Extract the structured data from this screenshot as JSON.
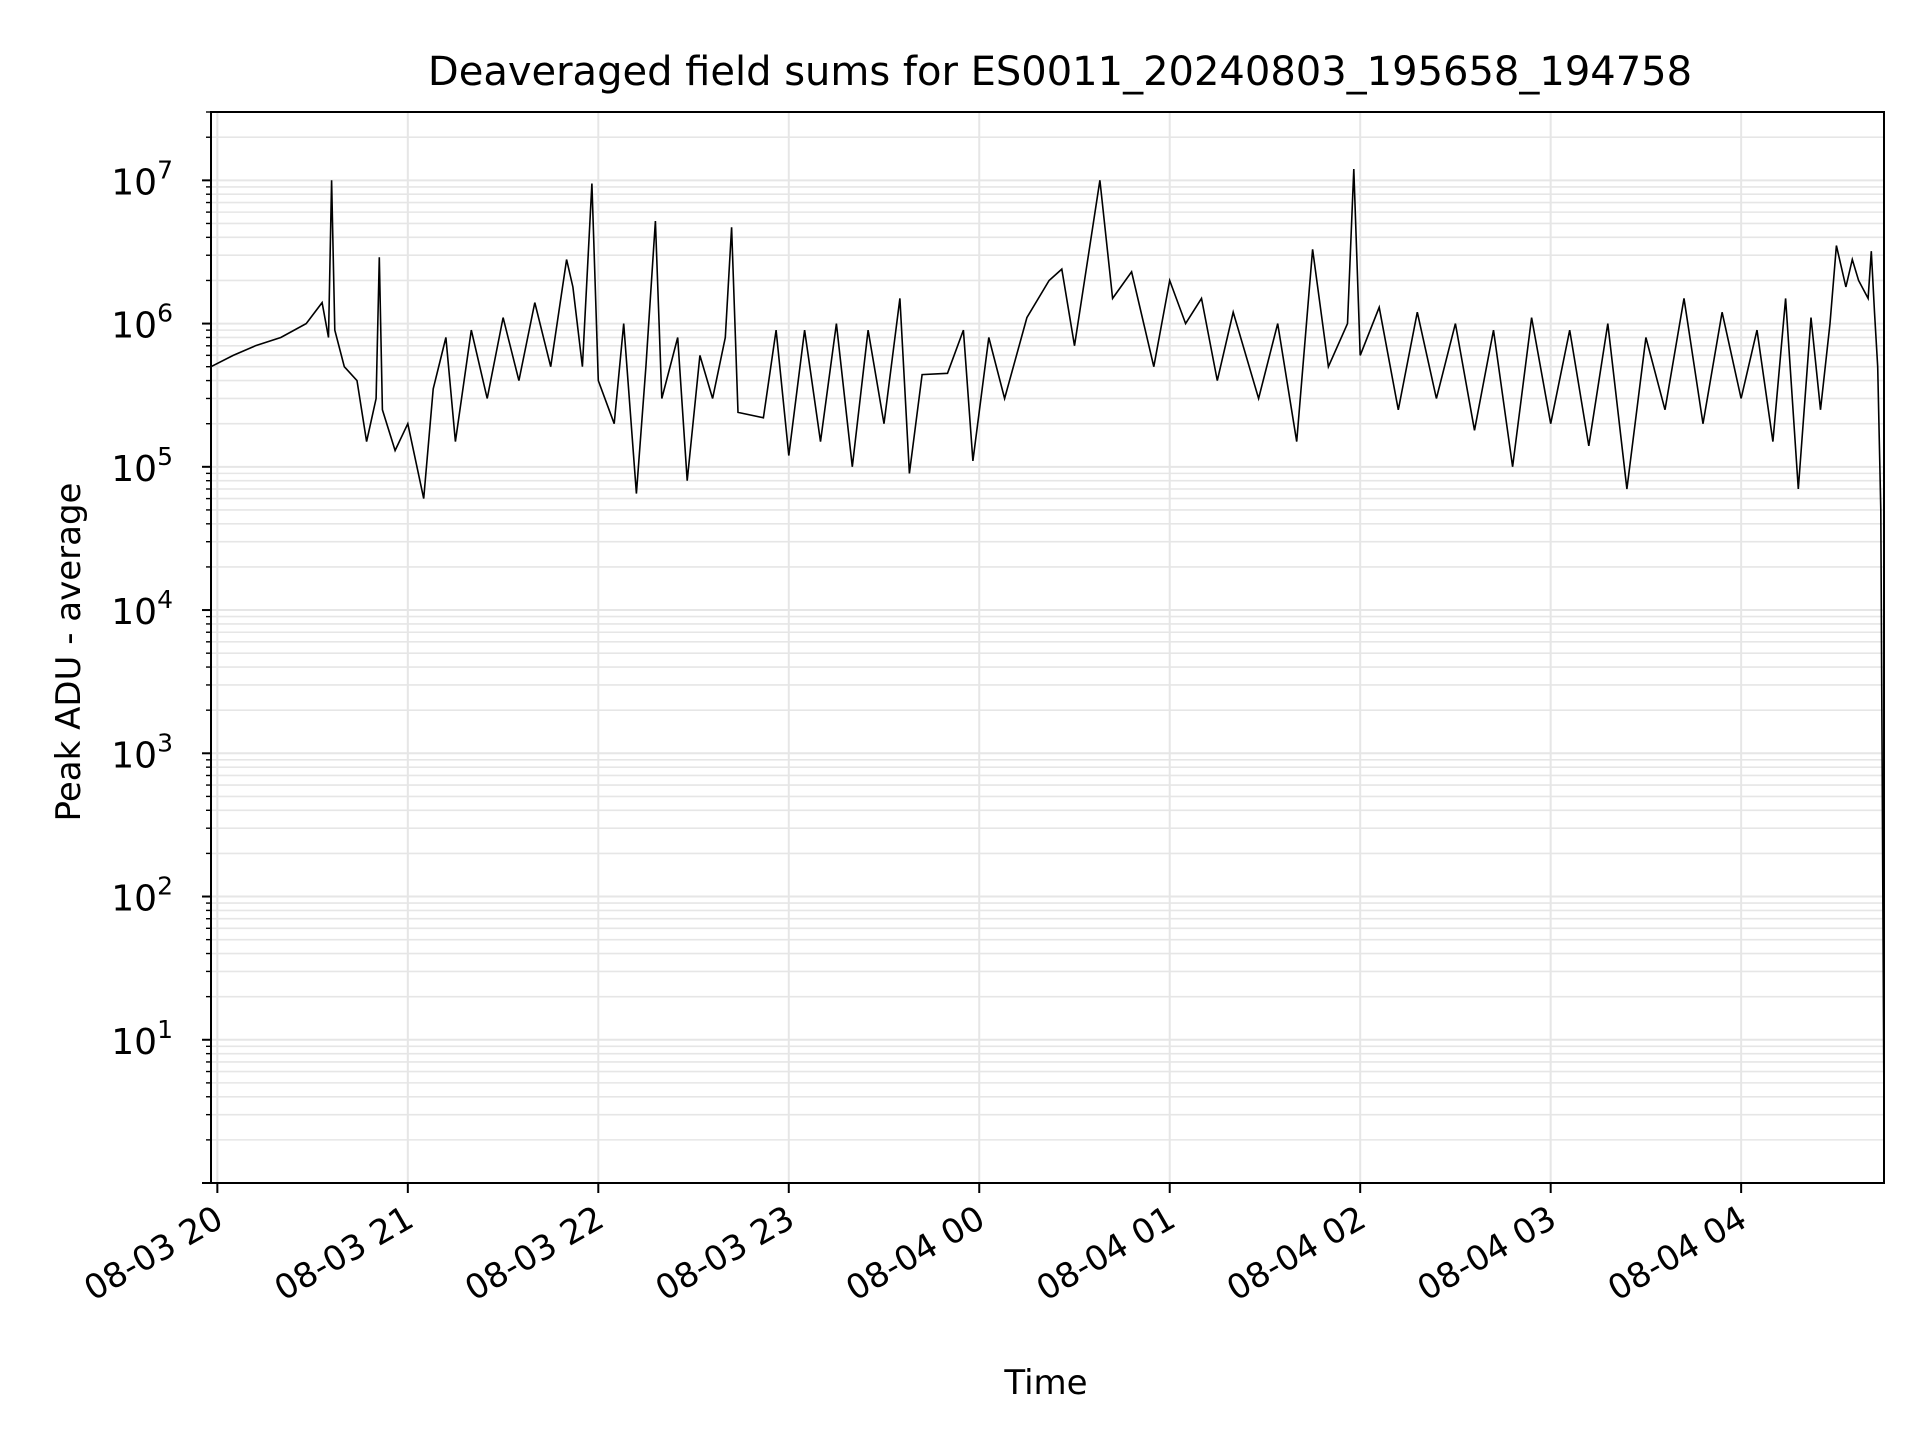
{
  "chart_data": {
    "type": "line",
    "title": "Deaveraged field sums for ES0011_20240803_195658_194758",
    "xlabel": "Time",
    "ylabel": "Peak ADU - average",
    "y_scale": "log",
    "ylim": [
      1.0,
      30000000
    ],
    "xlim": [
      "2024-08-03 19:58",
      "2024-08-04 04:45"
    ],
    "grid": true,
    "grid_minor": true,
    "line_color": "#000000",
    "grid_color": "#e6e6e6",
    "x_ticks": [
      {
        "t": "2024-08-03 20:00",
        "label": "08-03 20"
      },
      {
        "t": "2024-08-03 21:00",
        "label": "08-03 21"
      },
      {
        "t": "2024-08-03 22:00",
        "label": "08-03 22"
      },
      {
        "t": "2024-08-03 23:00",
        "label": "08-03 23"
      },
      {
        "t": "2024-08-04 00:00",
        "label": "08-04 00"
      },
      {
        "t": "2024-08-04 01:00",
        "label": "08-04 01"
      },
      {
        "t": "2024-08-04 02:00",
        "label": "08-04 02"
      },
      {
        "t": "2024-08-04 03:00",
        "label": "08-04 03"
      },
      {
        "t": "2024-08-04 04:00",
        "label": "08-04 04"
      }
    ],
    "y_ticks": [
      {
        "value": 10,
        "base": "10",
        "exp": "1"
      },
      {
        "value": 100,
        "base": "10",
        "exp": "2"
      },
      {
        "value": 1000,
        "base": "10",
        "exp": "3"
      },
      {
        "value": 10000,
        "base": "10",
        "exp": "4"
      },
      {
        "value": 100000,
        "base": "10",
        "exp": "5"
      },
      {
        "value": 1000000,
        "base": "10",
        "exp": "6"
      },
      {
        "value": 10000000,
        "base": "10",
        "exp": "7"
      }
    ],
    "series": [
      {
        "points": [
          [
            "2024-08-03 19:58",
            500000
          ],
          [
            "2024-08-03 20:05",
            600000
          ],
          [
            "2024-08-03 20:12",
            700000
          ],
          [
            "2024-08-03 20:20",
            800000
          ],
          [
            "2024-08-03 20:28",
            1000000
          ],
          [
            "2024-08-03 20:33",
            1400000
          ],
          [
            "2024-08-03 20:35",
            800000
          ],
          [
            "2024-08-03 20:36",
            10000000
          ],
          [
            "2024-08-03 20:37",
            900000
          ],
          [
            "2024-08-03 20:40",
            500000
          ],
          [
            "2024-08-03 20:44",
            400000
          ],
          [
            "2024-08-03 20:47",
            150000
          ],
          [
            "2024-08-03 20:50",
            300000
          ],
          [
            "2024-08-03 20:51",
            2900000
          ],
          [
            "2024-08-03 20:52",
            250000
          ],
          [
            "2024-08-03 20:56",
            130000
          ],
          [
            "2024-08-03 21:00",
            200000
          ],
          [
            "2024-08-03 21:05",
            60000
          ],
          [
            "2024-08-03 21:08",
            350000
          ],
          [
            "2024-08-03 21:12",
            800000
          ],
          [
            "2024-08-03 21:15",
            150000
          ],
          [
            "2024-08-03 21:20",
            900000
          ],
          [
            "2024-08-03 21:25",
            300000
          ],
          [
            "2024-08-03 21:30",
            1100000
          ],
          [
            "2024-08-03 21:35",
            400000
          ],
          [
            "2024-08-03 21:40",
            1400000
          ],
          [
            "2024-08-03 21:45",
            500000
          ],
          [
            "2024-08-03 21:50",
            2800000
          ],
          [
            "2024-08-03 21:52",
            1800000
          ],
          [
            "2024-08-03 21:55",
            500000
          ],
          [
            "2024-08-03 21:58",
            9500000
          ],
          [
            "2024-08-03 22:00",
            400000
          ],
          [
            "2024-08-03 22:05",
            200000
          ],
          [
            "2024-08-03 22:08",
            1000000
          ],
          [
            "2024-08-03 22:12",
            65000
          ],
          [
            "2024-08-03 22:15",
            500000
          ],
          [
            "2024-08-03 22:18",
            5200000
          ],
          [
            "2024-08-03 22:20",
            300000
          ],
          [
            "2024-08-03 22:25",
            800000
          ],
          [
            "2024-08-03 22:28",
            80000
          ],
          [
            "2024-08-03 22:32",
            600000
          ],
          [
            "2024-08-03 22:36",
            300000
          ],
          [
            "2024-08-03 22:40",
            800000
          ],
          [
            "2024-08-03 22:42",
            4700000
          ],
          [
            "2024-08-03 22:44",
            240000
          ],
          [
            "2024-08-03 22:52",
            220000
          ],
          [
            "2024-08-03 22:56",
            900000
          ],
          [
            "2024-08-03 23:00",
            120000
          ],
          [
            "2024-08-03 23:05",
            900000
          ],
          [
            "2024-08-03 23:10",
            150000
          ],
          [
            "2024-08-03 23:15",
            1000000
          ],
          [
            "2024-08-03 23:20",
            100000
          ],
          [
            "2024-08-03 23:25",
            900000
          ],
          [
            "2024-08-03 23:30",
            200000
          ],
          [
            "2024-08-03 23:35",
            1500000
          ],
          [
            "2024-08-03 23:38",
            90000
          ],
          [
            "2024-08-03 23:42",
            440000
          ],
          [
            "2024-08-03 23:50",
            450000
          ],
          [
            "2024-08-03 23:55",
            900000
          ],
          [
            "2024-08-03 23:58",
            110000
          ],
          [
            "2024-08-04 00:03",
            800000
          ],
          [
            "2024-08-04 00:08",
            300000
          ],
          [
            "2024-08-04 00:15",
            1100000
          ],
          [
            "2024-08-04 00:22",
            2000000
          ],
          [
            "2024-08-04 00:26",
            2400000
          ],
          [
            "2024-08-04 00:30",
            700000
          ],
          [
            "2024-08-04 00:38",
            10000000
          ],
          [
            "2024-08-04 00:42",
            1500000
          ],
          [
            "2024-08-04 00:48",
            2300000
          ],
          [
            "2024-08-04 00:55",
            500000
          ],
          [
            "2024-08-04 01:00",
            2000000
          ],
          [
            "2024-08-04 01:05",
            1000000
          ],
          [
            "2024-08-04 01:10",
            1500000
          ],
          [
            "2024-08-04 01:15",
            400000
          ],
          [
            "2024-08-04 01:20",
            1200000
          ],
          [
            "2024-08-04 01:28",
            300000
          ],
          [
            "2024-08-04 01:34",
            1000000
          ],
          [
            "2024-08-04 01:40",
            150000
          ],
          [
            "2024-08-04 01:45",
            3300000
          ],
          [
            "2024-08-04 01:50",
            500000
          ],
          [
            "2024-08-04 01:56",
            1000000
          ],
          [
            "2024-08-04 01:58",
            12000000
          ],
          [
            "2024-08-04 02:00",
            600000
          ],
          [
            "2024-08-04 02:06",
            1300000
          ],
          [
            "2024-08-04 02:12",
            250000
          ],
          [
            "2024-08-04 02:18",
            1200000
          ],
          [
            "2024-08-04 02:24",
            300000
          ],
          [
            "2024-08-04 02:30",
            1000000
          ],
          [
            "2024-08-04 02:36",
            180000
          ],
          [
            "2024-08-04 02:42",
            900000
          ],
          [
            "2024-08-04 02:48",
            100000
          ],
          [
            "2024-08-04 02:54",
            1100000
          ],
          [
            "2024-08-04 03:00",
            200000
          ],
          [
            "2024-08-04 03:06",
            900000
          ],
          [
            "2024-08-04 03:12",
            140000
          ],
          [
            "2024-08-04 03:18",
            1000000
          ],
          [
            "2024-08-04 03:24",
            70000
          ],
          [
            "2024-08-04 03:30",
            800000
          ],
          [
            "2024-08-04 03:36",
            250000
          ],
          [
            "2024-08-04 03:42",
            1500000
          ],
          [
            "2024-08-04 03:48",
            200000
          ],
          [
            "2024-08-04 03:54",
            1200000
          ],
          [
            "2024-08-04 04:00",
            300000
          ],
          [
            "2024-08-04 04:05",
            900000
          ],
          [
            "2024-08-04 04:10",
            150000
          ],
          [
            "2024-08-04 04:14",
            1500000
          ],
          [
            "2024-08-04 04:18",
            70000
          ],
          [
            "2024-08-04 04:22",
            1100000
          ],
          [
            "2024-08-04 04:25",
            250000
          ],
          [
            "2024-08-04 04:28",
            1000000
          ],
          [
            "2024-08-04 04:30",
            3500000
          ],
          [
            "2024-08-04 04:33",
            1800000
          ],
          [
            "2024-08-04 04:35",
            2800000
          ],
          [
            "2024-08-04 04:37",
            2000000
          ],
          [
            "2024-08-04 04:40",
            1500000
          ],
          [
            "2024-08-04 04:41",
            3200000
          ],
          [
            "2024-08-04 04:42",
            1200000
          ],
          [
            "2024-08-04 04:43",
            500000
          ],
          [
            "2024-08-04 04:44",
            50000
          ],
          [
            "2024-08-04 04:45",
            3
          ]
        ]
      }
    ]
  }
}
